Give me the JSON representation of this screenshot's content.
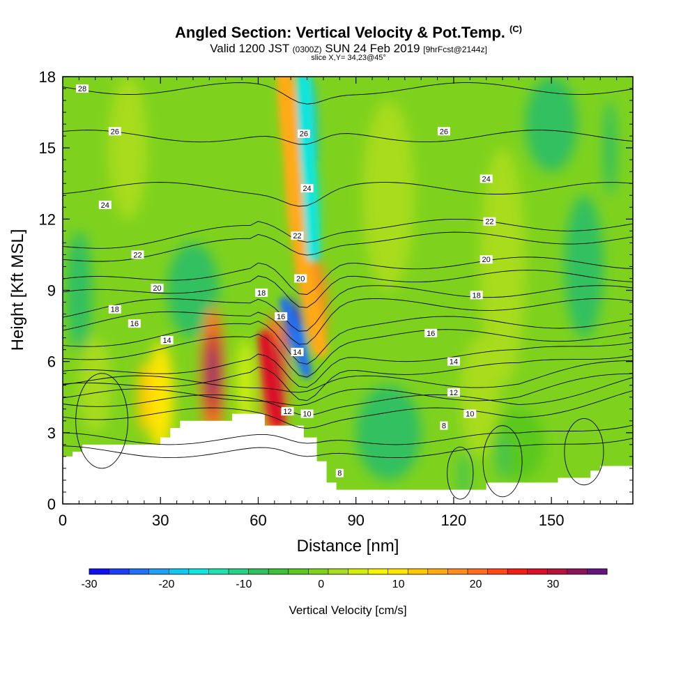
{
  "title": {
    "main": "Angled Section: Vertical Velocity & Pot.Temp.",
    "main_suffix": "(C)",
    "valid_prefix": "Valid 1200 JST",
    "valid_utc": "(0300Z)",
    "valid_date": "SUN 24 Feb 2019",
    "forecast": "[9hrFcst@2144z]",
    "slice": "slice X,Y= 34,23@45°"
  },
  "colorbar": {
    "label": "Vertical Velocity [cm/s]",
    "ticks": [
      "-30",
      "-20",
      "-10",
      "0",
      "10",
      "20",
      "30"
    ],
    "colors": [
      "#1010ee",
      "#1a3cf5",
      "#2070f5",
      "#20a0f5",
      "#10c8f0",
      "#10e6dc",
      "#20e0b0",
      "#28d088",
      "#30c060",
      "#3cc038",
      "#5ac81e",
      "#7ed21e",
      "#a8dc1e",
      "#d2ee0a",
      "#f5f500",
      "#ffe600",
      "#ffc800",
      "#ffaa14",
      "#ff8c1e",
      "#ff6e1e",
      "#ff4814",
      "#f01e14",
      "#dc0f28",
      "#b4143c",
      "#8c145a",
      "#64147d"
    ]
  },
  "chart_data": {
    "type": "heatmap",
    "title": "Angled Section: Vertical Velocity & Pot.Temp.",
    "xlabel": "Distance [nm]",
    "ylabel": "Height [Kft MSL]",
    "xlim": [
      0,
      175
    ],
    "ylim": [
      0,
      18
    ],
    "xticks": [
      0,
      30,
      60,
      90,
      120,
      150
    ],
    "yticks": [
      0,
      3,
      6,
      9,
      12,
      15,
      18
    ],
    "fill_variable": "Vertical Velocity [cm/s]",
    "contour_variable": "Pot.Temp. (C)",
    "colorbar_range": [
      -30,
      37
    ],
    "vertical_velocity_features": [
      {
        "x": 46,
        "y": 5.5,
        "value": 35
      },
      {
        "x": 65,
        "y": 5.2,
        "value": 30
      },
      {
        "x": 78,
        "y": 8.5,
        "value": 20
      },
      {
        "x": 71,
        "y": 7.5,
        "value": -28
      },
      {
        "x": 75,
        "y": 15.5,
        "value": -18
      },
      {
        "x": 123,
        "y": 1.2,
        "value": -8
      },
      {
        "x": 130,
        "y": 12,
        "value": 8
      },
      {
        "x": 30,
        "y": 4.5,
        "value": 10
      }
    ],
    "terrain_top_kft": [
      [
        0,
        2.0
      ],
      [
        3,
        2.2
      ],
      [
        6,
        2.5
      ],
      [
        30,
        2.5
      ],
      [
        30,
        2.8
      ],
      [
        33,
        3.2
      ],
      [
        36,
        3.5
      ],
      [
        52,
        3.5
      ],
      [
        52,
        3.8
      ],
      [
        58,
        3.8
      ],
      [
        62,
        3.3
      ],
      [
        72,
        3.3
      ],
      [
        74,
        2.8
      ],
      [
        78,
        1.8
      ],
      [
        81,
        0.9
      ],
      [
        84,
        0.6
      ],
      [
        125,
        0.6
      ],
      [
        130,
        0.9
      ],
      [
        148,
        0.9
      ],
      [
        152,
        1.1
      ],
      [
        162,
        1.4
      ],
      [
        165,
        1.6
      ],
      [
        175,
        1.6
      ]
    ],
    "isotherm_labels": [
      {
        "value": "28",
        "x": 6,
        "y": 17.5
      },
      {
        "value": "26",
        "x": 16,
        "y": 15.7
      },
      {
        "value": "26",
        "x": 74,
        "y": 15.6
      },
      {
        "value": "26",
        "x": 117,
        "y": 15.7
      },
      {
        "value": "24",
        "x": 13,
        "y": 12.6
      },
      {
        "value": "24",
        "x": 75,
        "y": 13.3
      },
      {
        "value": "24",
        "x": 130,
        "y": 13.7
      },
      {
        "value": "22",
        "x": 23,
        "y": 10.5
      },
      {
        "value": "22",
        "x": 72,
        "y": 11.3
      },
      {
        "value": "22",
        "x": 131,
        "y": 11.9
      },
      {
        "value": "20",
        "x": 29,
        "y": 9.1
      },
      {
        "value": "20",
        "x": 73,
        "y": 9.5
      },
      {
        "value": "20",
        "x": 130,
        "y": 10.3
      },
      {
        "value": "18",
        "x": 16,
        "y": 8.2
      },
      {
        "value": "18",
        "x": 61,
        "y": 8.9
      },
      {
        "value": "18",
        "x": 127,
        "y": 8.8
      },
      {
        "value": "16",
        "x": 22,
        "y": 7.6
      },
      {
        "value": "16",
        "x": 67,
        "y": 7.9
      },
      {
        "value": "16",
        "x": 113,
        "y": 7.2
      },
      {
        "value": "14",
        "x": 32,
        "y": 6.9
      },
      {
        "value": "14",
        "x": 72,
        "y": 6.4
      },
      {
        "value": "14",
        "x": 120,
        "y": 6.0
      },
      {
        "value": "12",
        "x": 69,
        "y": 3.9
      },
      {
        "value": "12",
        "x": 120,
        "y": 4.7
      },
      {
        "value": "10",
        "x": 75,
        "y": 3.8
      },
      {
        "value": "10",
        "x": 125,
        "y": 3.8
      },
      {
        "value": "8",
        "x": 85,
        "y": 1.3
      },
      {
        "value": "8",
        "x": 117,
        "y": 3.3
      }
    ],
    "isotherm_levels": [
      8,
      10,
      12,
      14,
      16,
      18,
      20,
      22,
      24,
      26,
      28
    ]
  }
}
